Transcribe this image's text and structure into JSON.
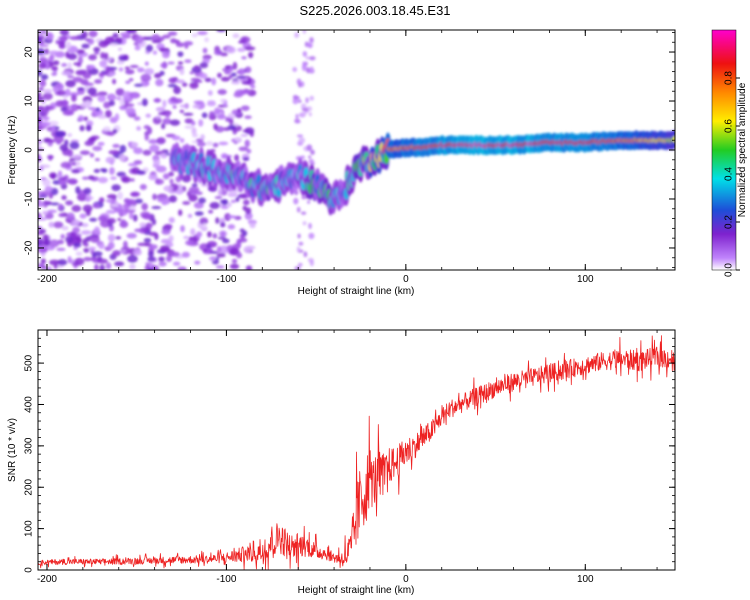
{
  "figure": {
    "title": "S225.2026.003.18.45.E31"
  },
  "chart_data": [
    {
      "type": "heatmap",
      "title": "S225.2026.003.18.45.E31",
      "xlabel": "Height of straight line (km)",
      "ylabel": "Frequency (Hz)",
      "xlim": [
        -205,
        150
      ],
      "ylim": [
        -24.5,
        24.5
      ],
      "x_ticks": [
        -200,
        -100,
        0,
        100
      ],
      "y_ticks": [
        -20,
        -10,
        0,
        10,
        20
      ],
      "colorbar": {
        "label": "Normalized spectral amplitude",
        "range": [
          0.0,
          1.0
        ],
        "ticks": [
          0.0,
          0.2,
          0.4,
          0.6,
          0.8
        ],
        "colors": [
          "#ffffff",
          "#c084fc",
          "#7e22ce",
          "#1d4ed8",
          "#00e0e8",
          "#22cc22",
          "#ffee00",
          "#ff8800",
          "#ee1111",
          "#ff00cc"
        ]
      },
      "ridge": {
        "name": "dominant frequency track",
        "x": [
          -130,
          -115,
          -100,
          -90,
          -80,
          -70,
          -60,
          -50,
          -40,
          -35,
          -30,
          -25,
          -20,
          -15,
          -10,
          0,
          10,
          20,
          40,
          60,
          80,
          100,
          120,
          150
        ],
        "y": [
          -2,
          -3,
          -5,
          -6,
          -8,
          -7,
          -5,
          -7,
          -10,
          -9,
          -5,
          -3,
          -2,
          -1,
          0,
          0.5,
          0.5,
          1,
          1,
          1,
          1.5,
          1.5,
          2,
          2
        ],
        "amplitude": [
          0.3,
          0.35,
          0.4,
          0.4,
          0.45,
          0.4,
          0.35,
          0.5,
          0.45,
          0.4,
          0.5,
          0.55,
          0.6,
          0.65,
          0.75,
          0.8,
          0.85,
          0.9,
          0.95,
          0.95,
          0.9,
          0.9,
          0.8,
          0.6
        ]
      }
    },
    {
      "type": "line",
      "xlabel": "Height of straight line (km)",
      "ylabel": "SNR (10 * v/v)",
      "xlim": [
        -205,
        150
      ],
      "ylim": [
        0,
        580
      ],
      "x_ticks": [
        -200,
        -100,
        0,
        100
      ],
      "y_ticks": [
        0,
        100,
        200,
        300,
        400,
        500
      ],
      "series": [
        {
          "name": "SNR",
          "color": "#ee2222",
          "x": [
            -205,
            -190,
            -170,
            -150,
            -130,
            -110,
            -100,
            -90,
            -80,
            -75,
            -70,
            -65,
            -60,
            -55,
            -50,
            -45,
            -40,
            -35,
            -30,
            -28,
            -25,
            -22,
            -20,
            -18,
            -15,
            -12,
            -10,
            -5,
            0,
            5,
            10,
            15,
            20,
            25,
            30,
            40,
            50,
            60,
            70,
            80,
            90,
            100,
            110,
            120,
            130,
            140,
            150
          ],
          "y": [
            18,
            20,
            20,
            22,
            24,
            26,
            30,
            38,
            48,
            70,
            80,
            55,
            60,
            58,
            45,
            40,
            30,
            28,
            50,
            120,
            170,
            200,
            230,
            210,
            240,
            230,
            250,
            260,
            285,
            300,
            320,
            340,
            370,
            390,
            400,
            420,
            440,
            455,
            465,
            475,
            485,
            495,
            505,
            510,
            505,
            515,
            510
          ],
          "spread": [
            12,
            14,
            14,
            16,
            18,
            20,
            26,
            40,
            70,
            80,
            80,
            70,
            60,
            50,
            40,
            30,
            25,
            40,
            110,
            160,
            180,
            170,
            150,
            130,
            110,
            100,
            90,
            80,
            70,
            60,
            55,
            50,
            45,
            45,
            45,
            45,
            45,
            45,
            45,
            45,
            45,
            45,
            45,
            50,
            50,
            50,
            50
          ]
        }
      ]
    }
  ]
}
